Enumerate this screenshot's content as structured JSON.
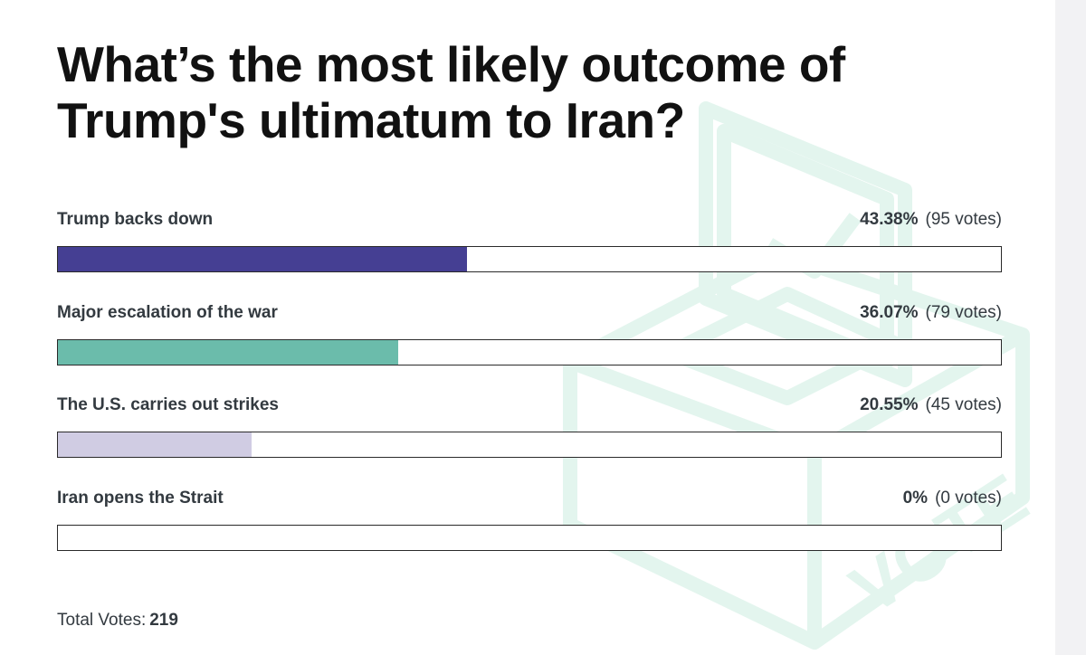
{
  "poll": {
    "title": "What’s the most likely outcome of Trump's ultimatum to Iran?",
    "options": [
      {
        "label": "Trump backs down",
        "percent_text": "43.38%",
        "votes_text": "(95 votes)",
        "percent": 43.38,
        "color": "#453f93"
      },
      {
        "label": "Major escalation of the war",
        "percent_text": "36.07%",
        "votes_text": "(79 votes)",
        "percent": 36.07,
        "color": "#6bbcab"
      },
      {
        "label": "The U.S. carries out strikes",
        "percent_text": "20.55%",
        "votes_text": "(45 votes)",
        "percent": 20.55,
        "color": "#d0cce3"
      },
      {
        "label": "Iran opens the Strait",
        "percent_text": "0%",
        "votes_text": "(0 votes)",
        "percent": 0,
        "color": "#cccccc"
      }
    ],
    "total_label": "Total Votes:",
    "total_value": "219"
  },
  "watermark": {
    "text": "VOTE",
    "icon": "ballot-box-icon",
    "color": "#e3f5ee"
  }
}
